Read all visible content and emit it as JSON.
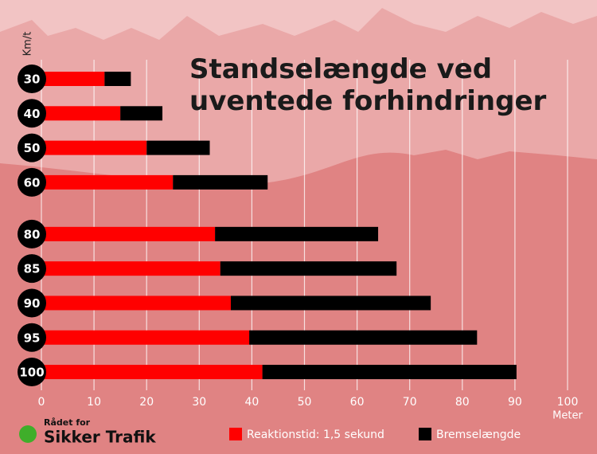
{
  "chart_data": {
    "type": "stacked-bar-horizontal",
    "title": "Standselængde ved uventede forhindringer",
    "y_label": "Km/t",
    "x_label": "Meter",
    "categories": [
      "30",
      "40",
      "50",
      "60",
      "80",
      "85",
      "90",
      "95",
      "100"
    ],
    "series": [
      {
        "name": "Reaktionstid: 1,5 sekund",
        "color": "#ff0000",
        "values": [
          12,
          15,
          20,
          25,
          33,
          34,
          36,
          39.5,
          42
        ]
      },
      {
        "name": "Bremselængde",
        "color": "#000000",
        "values": [
          5,
          8,
          12,
          18,
          31,
          33.5,
          38,
          43.3,
          48.3
        ]
      }
    ],
    "xlim": [
      0,
      100
    ],
    "xticks": [
      0,
      10,
      20,
      30,
      40,
      50,
      60,
      70,
      80,
      90,
      100
    ],
    "grid": true
  },
  "logo": {
    "line1": "Rådet for",
    "line2": "Sikker Trafik"
  }
}
